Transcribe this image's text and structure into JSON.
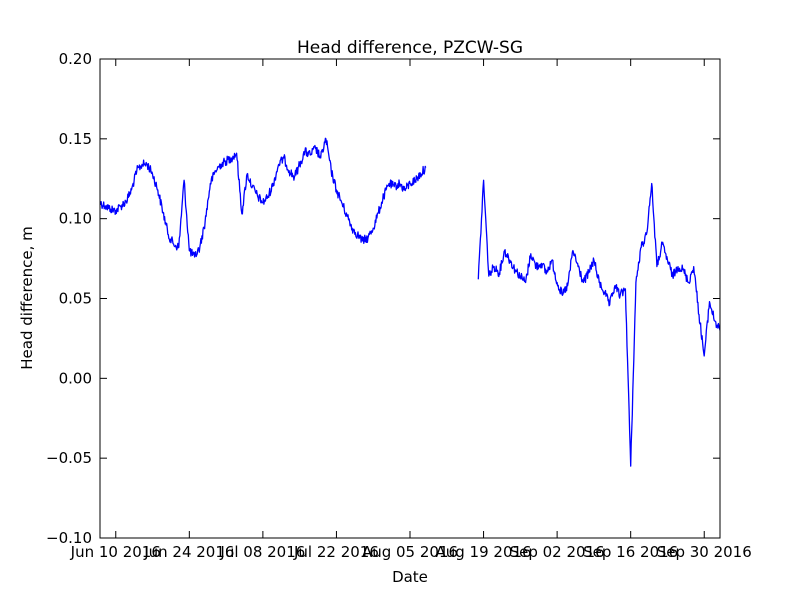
{
  "chart_data": {
    "type": "line",
    "title": "Head difference, PZCW-SG",
    "xlabel": "Date",
    "ylabel": "Head difference, m",
    "xlim": [
      "2016-06-07",
      "2016-10-03"
    ],
    "ylim": [
      -0.1,
      0.2
    ],
    "grid": false,
    "line_color": "#0000ff",
    "x_ticks": [
      {
        "date": "2016-06-10",
        "label": "Jun 10 2016"
      },
      {
        "date": "2016-06-24",
        "label": "Jun 24 2016"
      },
      {
        "date": "2016-07-08",
        "label": "Jul 08 2016"
      },
      {
        "date": "2016-07-22",
        "label": "Jul 22 2016"
      },
      {
        "date": "2016-08-05",
        "label": "Aug 05 2016"
      },
      {
        "date": "2016-08-19",
        "label": "Aug 19 2016"
      },
      {
        "date": "2016-09-02",
        "label": "Sep 02 2016"
      },
      {
        "date": "2016-09-16",
        "label": "Sep 16 2016"
      },
      {
        "date": "2016-09-30",
        "label": "Sep 30 2016"
      }
    ],
    "y_ticks": [
      {
        "value": -0.1,
        "label": "−0.10"
      },
      {
        "value": -0.05,
        "label": "−0.05"
      },
      {
        "value": 0.0,
        "label": "0.00"
      },
      {
        "value": 0.05,
        "label": "0.05"
      },
      {
        "value": 0.1,
        "label": "0.10"
      },
      {
        "value": 0.15,
        "label": "0.15"
      },
      {
        "value": 0.2,
        "label": "0.20"
      }
    ],
    "series": [
      {
        "segments": [
          [
            [
              "2016-06-07",
              0.11
            ],
            [
              "2016-06-08",
              0.108
            ],
            [
              "2016-06-09",
              0.106
            ],
            [
              "2016-06-10",
              0.105
            ],
            [
              "2016-06-11",
              0.108
            ],
            [
              "2016-06-12",
              0.111
            ],
            [
              "2016-06-13",
              0.118
            ],
            [
              "2016-06-14",
              0.13
            ],
            [
              "2016-06-15",
              0.134
            ],
            [
              "2016-06-16",
              0.134
            ],
            [
              "2016-06-17",
              0.128
            ],
            [
              "2016-06-18",
              0.118
            ],
            [
              "2016-06-19",
              0.104
            ],
            [
              "2016-06-20",
              0.09
            ],
            [
              "2016-06-21",
              0.084
            ],
            [
              "2016-06-22",
              0.082
            ],
            [
              "2016-06-23",
              0.124
            ],
            [
              "2016-06-24",
              0.08
            ],
            [
              "2016-06-25",
              0.076
            ],
            [
              "2016-06-26",
              0.082
            ],
            [
              "2016-06-27",
              0.098
            ],
            [
              "2016-06-28",
              0.122
            ],
            [
              "2016-06-29",
              0.13
            ],
            [
              "2016-06-30",
              0.134
            ],
            [
              "2016-07-01",
              0.136
            ],
            [
              "2016-07-02",
              0.138
            ],
            [
              "2016-07-03",
              0.141
            ],
            [
              "2016-07-04",
              0.103
            ],
            [
              "2016-07-05",
              0.128
            ],
            [
              "2016-07-06",
              0.12
            ],
            [
              "2016-07-07",
              0.114
            ],
            [
              "2016-07-08",
              0.11
            ],
            [
              "2016-07-09",
              0.114
            ],
            [
              "2016-07-10",
              0.122
            ],
            [
              "2016-07-11",
              0.134
            ],
            [
              "2016-07-12",
              0.138
            ],
            [
              "2016-07-13",
              0.13
            ],
            [
              "2016-07-14",
              0.126
            ],
            [
              "2016-07-15",
              0.134
            ],
            [
              "2016-07-16",
              0.142
            ],
            [
              "2016-07-17",
              0.14
            ],
            [
              "2016-07-18",
              0.144
            ],
            [
              "2016-07-19",
              0.138
            ],
            [
              "2016-07-20",
              0.15
            ],
            [
              "2016-07-21",
              0.13
            ],
            [
              "2016-07-22",
              0.118
            ],
            [
              "2016-07-23",
              0.11
            ],
            [
              "2016-07-24",
              0.102
            ],
            [
              "2016-07-25",
              0.094
            ],
            [
              "2016-07-26",
              0.09
            ],
            [
              "2016-07-27",
              0.086
            ],
            [
              "2016-07-28",
              0.088
            ],
            [
              "2016-07-29",
              0.094
            ],
            [
              "2016-07-30",
              0.104
            ],
            [
              "2016-07-31",
              0.114
            ],
            [
              "2016-08-01",
              0.122
            ],
            [
              "2016-08-02",
              0.12
            ],
            [
              "2016-08-03",
              0.122
            ],
            [
              "2016-08-04",
              0.118
            ],
            [
              "2016-08-05",
              0.122
            ],
            [
              "2016-08-06",
              0.124
            ],
            [
              "2016-08-07",
              0.128
            ],
            [
              "2016-08-08",
              0.132
            ]
          ],
          [
            [
              "2016-08-18",
              0.062
            ],
            [
              "2016-08-19",
              0.124
            ],
            [
              "2016-08-20",
              0.064
            ],
            [
              "2016-08-21",
              0.07
            ],
            [
              "2016-08-22",
              0.066
            ],
            [
              "2016-08-23",
              0.08
            ],
            [
              "2016-08-24",
              0.074
            ],
            [
              "2016-08-25",
              0.068
            ],
            [
              "2016-08-26",
              0.064
            ],
            [
              "2016-08-27",
              0.06
            ],
            [
              "2016-08-28",
              0.078
            ],
            [
              "2016-08-29",
              0.07
            ],
            [
              "2016-08-30",
              0.072
            ],
            [
              "2016-08-31",
              0.066
            ],
            [
              "2016-09-01",
              0.074
            ],
            [
              "2016-09-02",
              0.06
            ],
            [
              "2016-09-03",
              0.052
            ],
            [
              "2016-09-04",
              0.058
            ],
            [
              "2016-09-05",
              0.08
            ],
            [
              "2016-09-06",
              0.07
            ],
            [
              "2016-09-07",
              0.06
            ],
            [
              "2016-09-08",
              0.066
            ],
            [
              "2016-09-09",
              0.074
            ],
            [
              "2016-09-10",
              0.06
            ],
            [
              "2016-09-11",
              0.054
            ],
            [
              "2016-09-12",
              0.046
            ],
            [
              "2016-09-13",
              0.058
            ],
            [
              "2016-09-14",
              0.052
            ],
            [
              "2016-09-15",
              0.056
            ],
            [
              "2016-09-16",
              -0.055
            ],
            [
              "2016-09-17",
              0.06
            ],
            [
              "2016-09-18",
              0.082
            ],
            [
              "2016-09-19",
              0.09
            ],
            [
              "2016-09-20",
              0.122
            ],
            [
              "2016-09-21",
              0.07
            ],
            [
              "2016-09-22",
              0.084
            ],
            [
              "2016-09-23",
              0.074
            ],
            [
              "2016-09-24",
              0.064
            ],
            [
              "2016-09-25",
              0.07
            ],
            [
              "2016-09-26",
              0.068
            ],
            [
              "2016-09-27",
              0.06
            ],
            [
              "2016-09-28",
              0.07
            ],
            [
              "2016-09-29",
              0.04
            ],
            [
              "2016-09-30",
              0.014
            ],
            [
              "2016-10-01",
              0.048
            ],
            [
              "2016-10-02",
              0.036
            ],
            [
              "2016-10-03",
              0.03
            ]
          ]
        ]
      }
    ]
  }
}
